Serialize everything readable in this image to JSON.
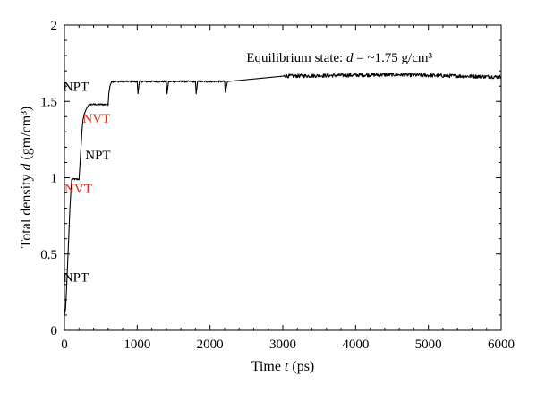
{
  "chart_data": {
    "type": "line",
    "title": "",
    "xlabel_prefix": "Time ",
    "xlabel_var": "t",
    "xlabel_suffix": " (ps)",
    "ylabel_prefix": "Total density ",
    "ylabel_var": "d",
    "ylabel_suffix": " (gm/cm³)",
    "xlim": [
      0,
      6000
    ],
    "ylim": [
      0,
      2
    ],
    "xticks": [
      0,
      1000,
      2000,
      3000,
      4000,
      5000,
      6000
    ],
    "xtick_labels": [
      "0",
      "1000",
      "2000",
      "3000",
      "4000",
      "5000",
      "6000"
    ],
    "yticks": [
      0,
      0.5,
      1,
      1.5,
      2
    ],
    "ytick_labels": [
      "0",
      "0.5",
      "1",
      "1.5",
      "2"
    ],
    "grid": false,
    "series": [
      {
        "color": "#000000",
        "points": [
          [
            0,
            0.1
          ],
          [
            15,
            0.14
          ],
          [
            30,
            0.28
          ],
          [
            45,
            0.45
          ],
          [
            60,
            0.62
          ],
          [
            75,
            0.8
          ],
          [
            90,
            0.92
          ],
          [
            100,
            0.99
          ],
          [
            200,
            0.99
          ],
          [
            210,
            1.06
          ],
          [
            225,
            1.18
          ],
          [
            240,
            1.3
          ],
          [
            255,
            1.38
          ],
          [
            275,
            1.42
          ],
          [
            300,
            1.45
          ],
          [
            325,
            1.47
          ],
          [
            340,
            1.48
          ],
          [
            600,
            1.48
          ],
          [
            610,
            1.55
          ],
          [
            625,
            1.6
          ],
          [
            650,
            1.63
          ],
          [
            1000,
            1.63
          ],
          [
            1010,
            1.55
          ],
          [
            1030,
            1.63
          ],
          [
            1400,
            1.63
          ],
          [
            1410,
            1.55
          ],
          [
            1430,
            1.63
          ],
          [
            1800,
            1.63
          ],
          [
            1810,
            1.55
          ],
          [
            1830,
            1.63
          ],
          [
            2200,
            1.63
          ],
          [
            2210,
            1.56
          ],
          [
            2240,
            1.63
          ],
          [
            3000,
            1.665
          ],
          [
            4500,
            1.675
          ],
          [
            6000,
            1.66
          ]
        ]
      }
    ],
    "annotations": [
      {
        "text": "NPT",
        "x": 160,
        "y": 0.32,
        "color": "#000000"
      },
      {
        "text": "NVT",
        "x": 190,
        "y": 0.9,
        "color": "#e0301e"
      },
      {
        "text": "NPT",
        "x": 460,
        "y": 1.12,
        "color": "#000000"
      },
      {
        "text": "NVT",
        "x": 440,
        "y": 1.36,
        "color": "#e0301e"
      },
      {
        "text": "NPT",
        "x": 160,
        "y": 1.57,
        "color": "#000000"
      }
    ],
    "equilibrium_label": {
      "prefix": "Equilibrium state: ",
      "var": "d",
      "suffix": " = ~1.75 g/cm³",
      "x": 2500,
      "y": 1.76
    }
  },
  "colors": {
    "line": "#000000",
    "nvt": "#e0301e",
    "npt": "#000000"
  }
}
